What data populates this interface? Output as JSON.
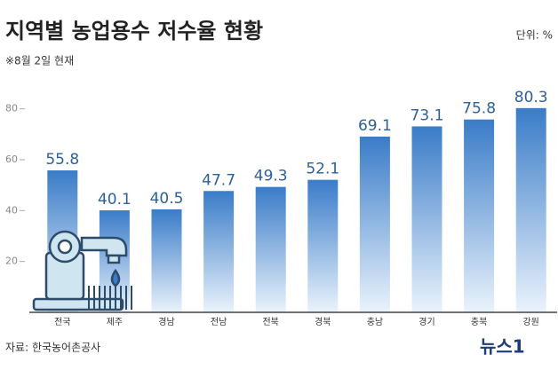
{
  "chart_data": {
    "type": "bar",
    "title": "지역별 농업용수 저수율 현황",
    "unit": "단위: %",
    "subtitle": "※8월 2일 현재",
    "categories": [
      "전국",
      "제주",
      "경남",
      "전남",
      "전북",
      "경북",
      "충남",
      "경기",
      "충북",
      "강원"
    ],
    "values": [
      55.8,
      40.1,
      40.5,
      47.7,
      49.3,
      52.1,
      69.1,
      73.1,
      75.8,
      80.3
    ],
    "color": "#3b7dc9",
    "ylim": [
      0,
      90
    ],
    "yticks": [
      20,
      40,
      60,
      80
    ],
    "grid": false,
    "source": "자료: 한국농어촌공사",
    "watermark": "뉴스1"
  }
}
